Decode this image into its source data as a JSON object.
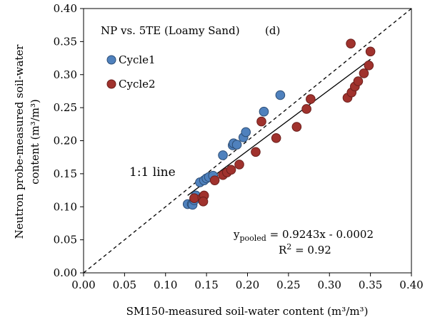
{
  "chart_data": {
    "type": "scatter",
    "title": "NP vs. 5TE (Loamy Sand)",
    "panel_label": "(d)",
    "xlabel": "SM150-measured soil-water content (m³/m³)",
    "ylabel_line1": "Neutron probe-measured soil-water",
    "ylabel_line2": "content  (m³/m³)",
    "xlim": [
      0.0,
      0.4
    ],
    "ylim": [
      0.0,
      0.4
    ],
    "x_ticks": [
      "0.00",
      "0.05",
      "0.10",
      "0.15",
      "0.20",
      "0.25",
      "0.30",
      "0.35",
      "0.40"
    ],
    "y_ticks": [
      "0.00",
      "0.05",
      "0.10",
      "0.15",
      "0.20",
      "0.25",
      "0.30",
      "0.35",
      "0.40"
    ],
    "legend_position": "top-left",
    "series": [
      {
        "name": "Cycle1",
        "color": "#4f81bd",
        "points": [
          [
            0.127,
            0.104
          ],
          [
            0.132,
            0.104
          ],
          [
            0.133,
            0.103
          ],
          [
            0.135,
            0.11
          ],
          [
            0.137,
            0.117
          ],
          [
            0.142,
            0.137
          ],
          [
            0.147,
            0.14
          ],
          [
            0.15,
            0.143
          ],
          [
            0.153,
            0.145
          ],
          [
            0.158,
            0.147
          ],
          [
            0.17,
            0.178
          ],
          [
            0.182,
            0.193
          ],
          [
            0.183,
            0.196
          ],
          [
            0.187,
            0.194
          ],
          [
            0.195,
            0.205
          ],
          [
            0.198,
            0.213
          ],
          [
            0.22,
            0.244
          ],
          [
            0.24,
            0.269
          ]
        ]
      },
      {
        "name": "Cycle2",
        "color": "#a0322d",
        "points": [
          [
            0.135,
            0.113
          ],
          [
            0.145,
            0.114
          ],
          [
            0.147,
            0.117
          ],
          [
            0.146,
            0.108
          ],
          [
            0.16,
            0.14
          ],
          [
            0.17,
            0.148
          ],
          [
            0.175,
            0.152
          ],
          [
            0.18,
            0.156
          ],
          [
            0.19,
            0.164
          ],
          [
            0.21,
            0.183
          ],
          [
            0.217,
            0.229
          ],
          [
            0.235,
            0.204
          ],
          [
            0.26,
            0.221
          ],
          [
            0.272,
            0.248
          ],
          [
            0.277,
            0.263
          ],
          [
            0.322,
            0.265
          ],
          [
            0.327,
            0.273
          ],
          [
            0.331,
            0.282
          ],
          [
            0.335,
            0.29
          ],
          [
            0.342,
            0.302
          ],
          [
            0.348,
            0.314
          ],
          [
            0.35,
            0.335
          ],
          [
            0.326,
            0.347
          ]
        ]
      }
    ],
    "one_to_one_line_label": "1:1 line",
    "regression": {
      "slope": 0.9243,
      "intercept": -0.0002,
      "x_range": [
        0.127,
        0.35
      ],
      "equation_prefix": "y",
      "equation_subscript": "pooled",
      "equation_suffix": " = 0.9243x - 0.0002",
      "r2_label": "R",
      "r2_sup": "2",
      "r2_value": " = 0.92"
    }
  }
}
